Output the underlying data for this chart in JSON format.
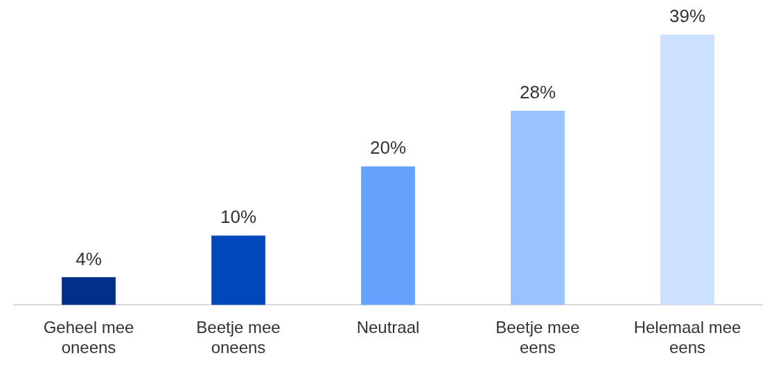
{
  "chart_data": {
    "type": "bar",
    "categories": [
      "Geheel mee oneens",
      "Beetje mee oneens",
      "Neutraal",
      "Beetje mee eens",
      "Helemaal mee eens"
    ],
    "values": [
      4,
      10,
      20,
      28,
      39
    ],
    "colors": [
      "#003087",
      "#0047bb",
      "#66a3ff",
      "#99c2ff",
      "#cce0ff"
    ],
    "value_labels": [
      "4%",
      "10%",
      "20%",
      "28%",
      "39%"
    ],
    "tick_labels": "x",
    "grid": false,
    "legend": false
  }
}
